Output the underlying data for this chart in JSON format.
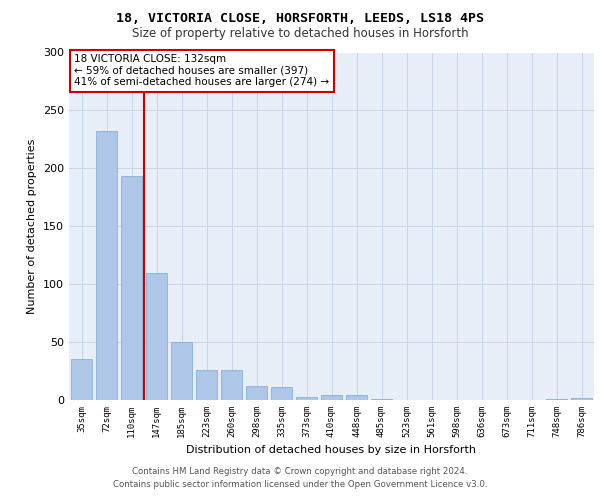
{
  "title1": "18, VICTORIA CLOSE, HORSFORTH, LEEDS, LS18 4PS",
  "title2": "Size of property relative to detached houses in Horsforth",
  "xlabel": "Distribution of detached houses by size in Horsforth",
  "ylabel": "Number of detached properties",
  "bar_labels": [
    "35sqm",
    "72sqm",
    "110sqm",
    "147sqm",
    "185sqm",
    "223sqm",
    "260sqm",
    "298sqm",
    "335sqm",
    "373sqm",
    "410sqm",
    "448sqm",
    "485sqm",
    "523sqm",
    "561sqm",
    "598sqm",
    "636sqm",
    "673sqm",
    "711sqm",
    "748sqm",
    "786sqm"
  ],
  "bar_values": [
    35,
    232,
    193,
    110,
    50,
    26,
    26,
    12,
    11,
    3,
    4,
    4,
    1,
    0,
    0,
    0,
    0,
    0,
    0,
    1,
    2
  ],
  "bar_color": "#aec6e8",
  "bar_edge_color": "#7aaace",
  "vline_color": "#cc0000",
  "grid_color": "#c8d4e8",
  "background_color": "#e8eef8",
  "annotation_box_text": "18 VICTORIA CLOSE: 132sqm\n← 59% of detached houses are smaller (397)\n41% of semi-detached houses are larger (274) →",
  "footer_line1": "Contains HM Land Registry data © Crown copyright and database right 2024.",
  "footer_line2": "Contains public sector information licensed under the Open Government Licence v3.0.",
  "ylim": [
    0,
    300
  ],
  "yticks": [
    0,
    50,
    100,
    150,
    200,
    250,
    300
  ]
}
